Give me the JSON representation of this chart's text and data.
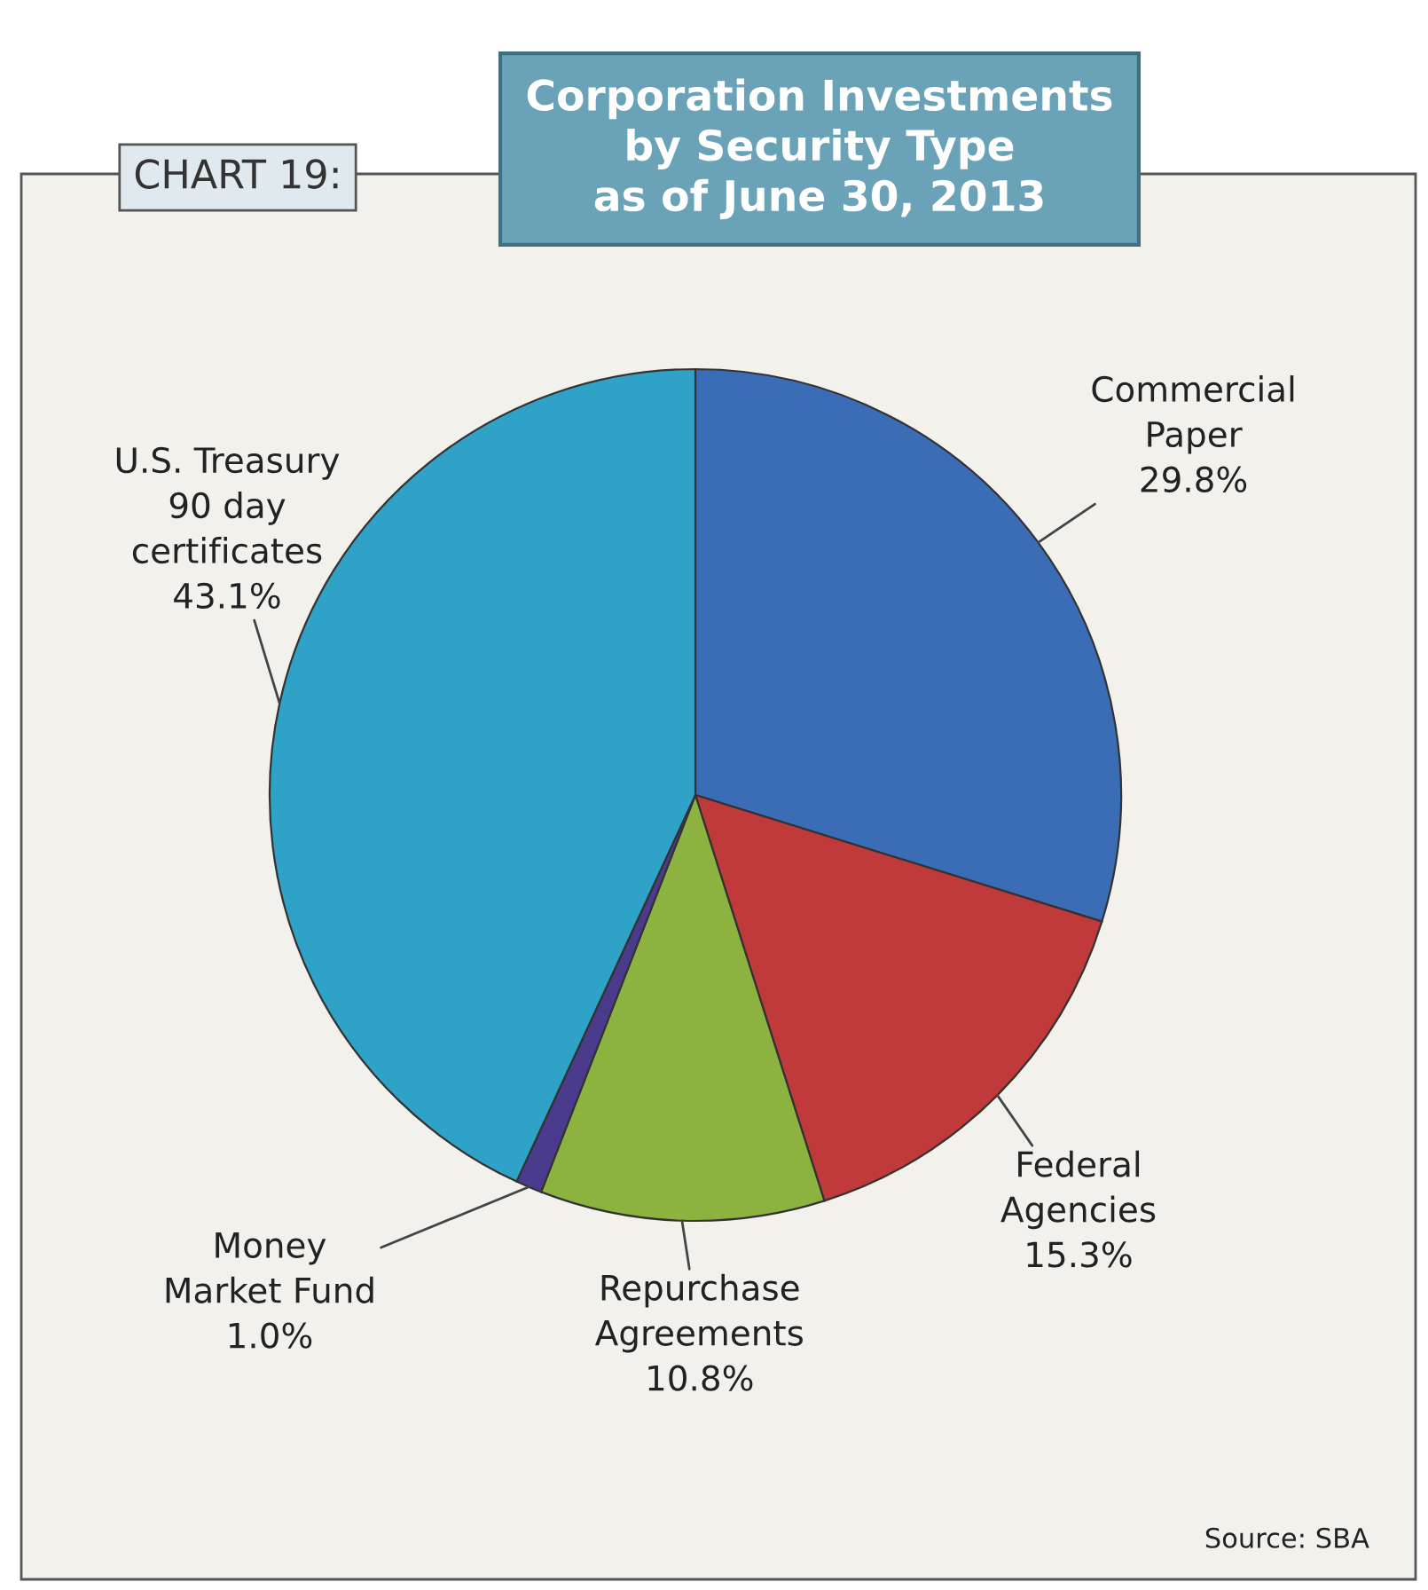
{
  "chart_data": {
    "type": "pie",
    "title": "Corporation Investments\nby Security Type\nas of June 30, 2013",
    "categories": [
      "Commercial\nPaper",
      "Federal\nAgencies",
      "Repurchase\nAgreements",
      "Money\nMarket Fund",
      "U.S. Treasury\n90 day\ncertificates"
    ],
    "values": [
      29.8,
      15.3,
      10.8,
      1.0,
      43.1
    ],
    "value_labels": [
      "29.8%",
      "15.3%",
      "10.8%",
      "1.0%",
      "43.1%"
    ],
    "colors": [
      "#3a6db5",
      "#c0393b",
      "#8cb23f",
      "#4b3b8c",
      "#2fa2c8"
    ],
    "annotations": [
      "CHART 19:",
      "Source: SBA"
    ],
    "legend": false
  }
}
